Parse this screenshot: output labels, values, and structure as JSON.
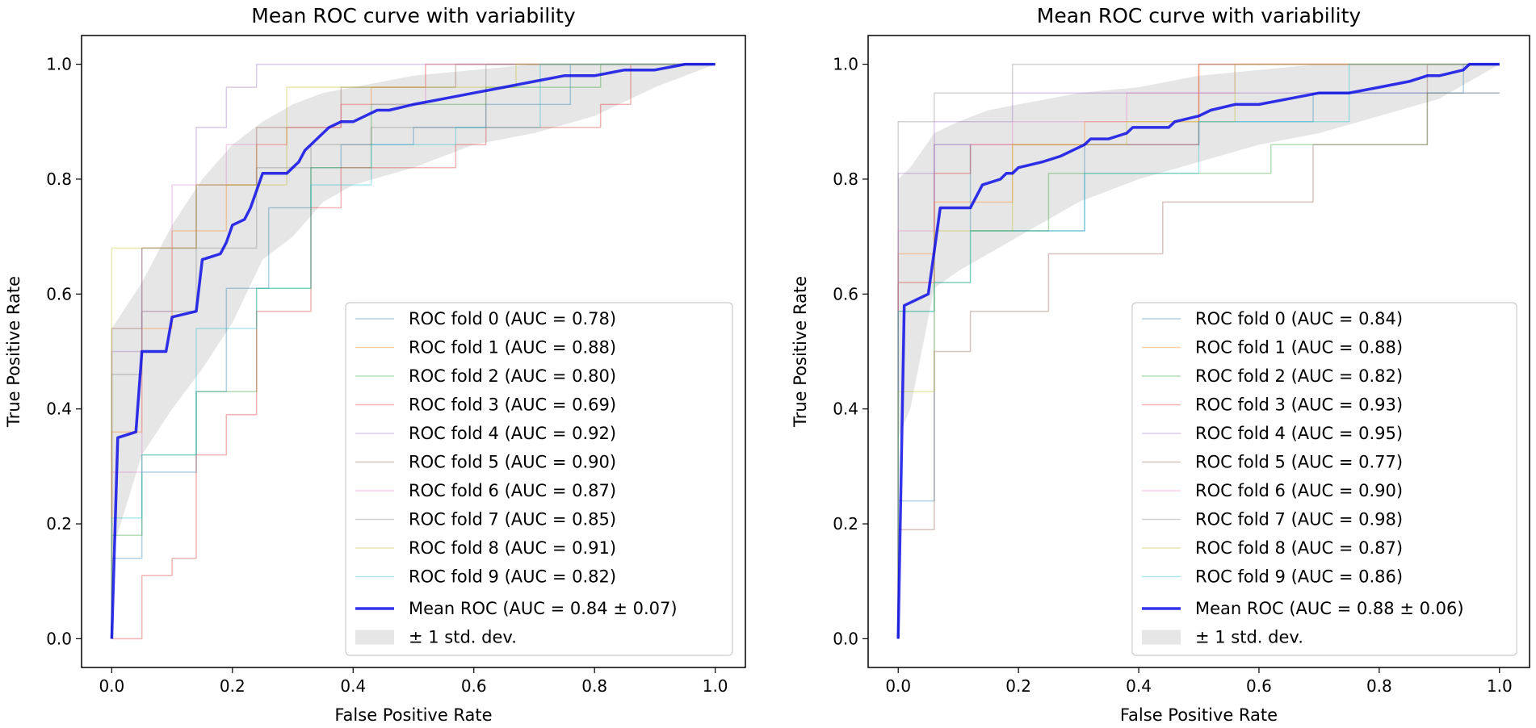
{
  "chart_data": [
    {
      "type": "line",
      "title": "Mean ROC curve with variability",
      "xlabel": "False Positive Rate",
      "ylabel": "True Positive Rate",
      "xlim": [
        -0.05,
        1.05
      ],
      "ylim": [
        -0.05,
        1.05
      ],
      "xticks": [
        "0.0",
        "0.2",
        "0.4",
        "0.6",
        "0.8",
        "1.0"
      ],
      "yticks": [
        "0.0",
        "0.2",
        "0.4",
        "0.6",
        "0.8",
        "1.0"
      ],
      "legend_position": "lower-right",
      "series": [
        {
          "name": "ROC fold 0 (AUC = 0.78)",
          "color": "#1f77b4",
          "x": [
            0,
            0,
            0.05,
            0.05,
            0.14,
            0.14,
            0.19,
            0.19,
            0.26,
            0.26,
            0.33,
            0.33,
            0.38,
            0.38,
            0.5,
            0.5,
            0.62,
            0.62,
            0.76,
            0.76,
            1
          ],
          "y": [
            0,
            0.14,
            0.14,
            0.29,
            0.29,
            0.43,
            0.43,
            0.61,
            0.61,
            0.75,
            0.75,
            0.82,
            0.82,
            0.86,
            0.86,
            0.89,
            0.89,
            0.93,
            0.93,
            1,
            1
          ]
        },
        {
          "name": "ROC fold 1 (AUC = 0.88)",
          "color": "#ff7f0e",
          "x": [
            0,
            0,
            0.05,
            0.05,
            0.1,
            0.1,
            0.19,
            0.19,
            0.24,
            0.24,
            0.29,
            0.29,
            0.38,
            0.38,
            0.43,
            0.43,
            0.52,
            0.52,
            1
          ],
          "y": [
            0,
            0.36,
            0.36,
            0.54,
            0.54,
            0.71,
            0.71,
            0.79,
            0.79,
            0.86,
            0.86,
            0.89,
            0.89,
            0.93,
            0.93,
            0.96,
            0.96,
            1,
            1
          ]
        },
        {
          "name": "ROC fold 2 (AUC = 0.80)",
          "color": "#2ca02c",
          "x": [
            0,
            0,
            0.05,
            0.05,
            0.14,
            0.14,
            0.24,
            0.24,
            0.33,
            0.33,
            0.43,
            0.43,
            0.62,
            0.62,
            0.81,
            0.81,
            1
          ],
          "y": [
            0,
            0.18,
            0.18,
            0.32,
            0.32,
            0.43,
            0.43,
            0.61,
            0.61,
            0.82,
            0.82,
            0.93,
            0.93,
            0.96,
            0.96,
            1,
            1
          ]
        },
        {
          "name": "ROC fold 3 (AUC = 0.69)",
          "color": "#d62728",
          "x": [
            0,
            0,
            0.05,
            0.05,
            0.1,
            0.1,
            0.14,
            0.14,
            0.19,
            0.19,
            0.24,
            0.24,
            0.33,
            0.33,
            0.38,
            0.38,
            0.57,
            0.57,
            0.62,
            0.62,
            0.81,
            0.81,
            0.86,
            0.86,
            1
          ],
          "y": [
            0,
            0,
            0,
            0.11,
            0.11,
            0.14,
            0.14,
            0.32,
            0.32,
            0.39,
            0.39,
            0.57,
            0.57,
            0.75,
            0.75,
            0.82,
            0.82,
            0.86,
            0.86,
            0.89,
            0.89,
            0.93,
            0.93,
            1,
            1
          ]
        },
        {
          "name": "ROC fold 4 (AUC = 0.92)",
          "color": "#9467bd",
          "x": [
            0,
            0,
            0.05,
            0.05,
            0.14,
            0.14,
            0.19,
            0.19,
            0.24,
            0.24,
            0.33,
            0.33,
            1
          ],
          "y": [
            0,
            0.5,
            0.5,
            0.68,
            0.68,
            0.89,
            0.89,
            0.96,
            0.96,
            1,
            1,
            1,
            1
          ]
        },
        {
          "name": "ROC fold 5 (AUC = 0.90)",
          "color": "#8c564b",
          "x": [
            0,
            0,
            0.05,
            0.05,
            0.14,
            0.14,
            0.24,
            0.24,
            0.38,
            0.38,
            0.57,
            0.57,
            1
          ],
          "y": [
            0,
            0.54,
            0.54,
            0.68,
            0.68,
            0.79,
            0.79,
            0.89,
            0.89,
            0.96,
            0.96,
            1,
            1
          ]
        },
        {
          "name": "ROC fold 6 (AUC = 0.87)",
          "color": "#e377c2",
          "x": [
            0,
            0,
            0.05,
            0.05,
            0.1,
            0.1,
            0.19,
            0.19,
            0.29,
            0.29,
            0.38,
            0.38,
            0.52,
            0.52,
            1
          ],
          "y": [
            0,
            0.29,
            0.29,
            0.57,
            0.57,
            0.79,
            0.79,
            0.86,
            0.86,
            0.89,
            0.89,
            0.93,
            0.93,
            1,
            1
          ]
        },
        {
          "name": "ROC fold 7 (AUC = 0.85)",
          "color": "#7f7f7f",
          "x": [
            0,
            0,
            0.05,
            0.05,
            0.14,
            0.14,
            0.24,
            0.24,
            0.33,
            0.33,
            0.43,
            0.43,
            0.62,
            0.62,
            1
          ],
          "y": [
            0,
            0.46,
            0.46,
            0.57,
            0.57,
            0.68,
            0.68,
            0.82,
            0.82,
            0.86,
            0.86,
            0.89,
            0.89,
            1,
            1
          ]
        },
        {
          "name": "ROC fold 8 (AUC = 0.91)",
          "color": "#bcbd22",
          "x": [
            0,
            0,
            0.05,
            0.05,
            0.14,
            0.14,
            0.29,
            0.29,
            0.48,
            0.48,
            0.67,
            0.67,
            1
          ],
          "y": [
            0,
            0.68,
            0.68,
            0.68,
            0.68,
            0.79,
            0.79,
            0.96,
            0.96,
            0.96,
            0.96,
            1,
            1
          ]
        },
        {
          "name": "ROC fold 9 (AUC = 0.82)",
          "color": "#17becf",
          "x": [
            0,
            0,
            0.05,
            0.05,
            0.14,
            0.14,
            0.24,
            0.24,
            0.33,
            0.33,
            0.43,
            0.43,
            0.57,
            0.57,
            0.71,
            0.71,
            1
          ],
          "y": [
            0,
            0.21,
            0.21,
            0.32,
            0.32,
            0.54,
            0.54,
            0.61,
            0.61,
            0.79,
            0.79,
            0.86,
            0.86,
            0.89,
            0.89,
            1,
            1
          ]
        },
        {
          "name": "Mean ROC (AUC = 0.84 ± 0.07)",
          "color": "#0000e6",
          "x": [
            0,
            0.01,
            0.04,
            0.05,
            0.09,
            0.1,
            0.14,
            0.15,
            0.18,
            0.19,
            0.2,
            0.22,
            0.23,
            0.25,
            0.29,
            0.3,
            0.31,
            0.32,
            0.33,
            0.35,
            0.36,
            0.38,
            0.4,
            0.42,
            0.44,
            0.46,
            0.5,
            0.55,
            0.6,
            0.65,
            0.7,
            0.75,
            0.8,
            0.85,
            0.9,
            0.95,
            1
          ],
          "y": [
            0,
            0.35,
            0.36,
            0.5,
            0.5,
            0.56,
            0.57,
            0.66,
            0.67,
            0.69,
            0.72,
            0.73,
            0.75,
            0.81,
            0.81,
            0.82,
            0.83,
            0.85,
            0.86,
            0.88,
            0.89,
            0.9,
            0.9,
            0.91,
            0.92,
            0.92,
            0.93,
            0.94,
            0.95,
            0.96,
            0.97,
            0.98,
            0.98,
            0.99,
            0.99,
            1,
            1
          ]
        },
        {
          "name": "± 1 std. dev.",
          "color": "#808080",
          "x": [
            0,
            0.05,
            0.1,
            0.15,
            0.2,
            0.25,
            0.3,
            0.35,
            0.4,
            0.5,
            0.6,
            0.7,
            0.8,
            0.9,
            1
          ],
          "y_upper": [
            0.54,
            0.62,
            0.72,
            0.8,
            0.86,
            0.9,
            0.93,
            0.95,
            0.96,
            0.98,
            0.99,
            1,
            1,
            1,
            1
          ],
          "y_lower": [
            0.15,
            0.32,
            0.4,
            0.47,
            0.55,
            0.66,
            0.7,
            0.76,
            0.79,
            0.82,
            0.86,
            0.88,
            0.91,
            0.96,
            1
          ]
        }
      ]
    },
    {
      "type": "line",
      "title": "Mean ROC curve with variability",
      "xlabel": "False Positive Rate",
      "ylabel": "True Positive Rate",
      "xlim": [
        -0.05,
        1.05
      ],
      "ylim": [
        -0.05,
        1.05
      ],
      "xticks": [
        "0.0",
        "0.2",
        "0.4",
        "0.6",
        "0.8",
        "1.0"
      ],
      "yticks": [
        "0.0",
        "0.2",
        "0.4",
        "0.6",
        "0.8",
        "1.0"
      ],
      "legend_position": "lower-right",
      "series": [
        {
          "name": "ROC fold 0 (AUC = 0.84)",
          "color": "#1f77b4",
          "x": [
            0,
            0,
            0.06,
            0.06,
            0.12,
            0.12,
            0.31,
            0.31,
            0.5,
            0.5,
            0.69,
            0.69,
            0.94,
            0.94,
            1
          ],
          "y": [
            0,
            0.24,
            0.24,
            0.86,
            0.86,
            0.71,
            0.71,
            0.86,
            0.86,
            0.9,
            0.9,
            0.95,
            0.95,
            1,
            1
          ]
        },
        {
          "name": "ROC fold 1 (AUC = 0.88)",
          "color": "#ff7f0e",
          "x": [
            0,
            0,
            0.06,
            0.06,
            0.19,
            0.19,
            0.31,
            0.31,
            0.5,
            0.5,
            1
          ],
          "y": [
            0,
            0.67,
            0.67,
            0.76,
            0.76,
            0.86,
            0.86,
            0.9,
            0.9,
            1,
            1
          ]
        },
        {
          "name": "ROC fold 2 (AUC = 0.82)",
          "color": "#2ca02c",
          "x": [
            0,
            0,
            0.06,
            0.06,
            0.12,
            0.12,
            0.25,
            0.25,
            0.62,
            0.62,
            0.88,
            0.88,
            1
          ],
          "y": [
            0,
            0.57,
            0.57,
            0.62,
            0.62,
            0.71,
            0.71,
            0.81,
            0.81,
            0.86,
            0.86,
            0.95,
            0.95
          ]
        },
        {
          "name": "ROC fold 3 (AUC = 0.93)",
          "color": "#d62728",
          "x": [
            0,
            0,
            0.06,
            0.06,
            0.12,
            0.12,
            0.5,
            0.5,
            1
          ],
          "y": [
            0,
            0.62,
            0.62,
            0.81,
            0.81,
            0.86,
            0.86,
            1,
            1
          ]
        },
        {
          "name": "ROC fold 4 (AUC = 0.95)",
          "color": "#9467bd",
          "x": [
            0,
            0,
            0.06,
            0.06,
            0.19,
            0.19,
            1
          ],
          "y": [
            0,
            0.81,
            0.81,
            0.9,
            0.9,
            0.95,
            0.95
          ]
        },
        {
          "name": "ROC fold 5 (AUC = 0.77)",
          "color": "#8c564b",
          "x": [
            0,
            0,
            0.06,
            0.06,
            0.12,
            0.12,
            0.25,
            0.25,
            0.44,
            0.44,
            0.69,
            0.69,
            0.88,
            0.88,
            1
          ],
          "y": [
            0,
            0.19,
            0.19,
            0.5,
            0.5,
            0.57,
            0.57,
            0.67,
            0.67,
            0.76,
            0.76,
            0.86,
            0.86,
            1,
            1
          ]
        },
        {
          "name": "ROC fold 6 (AUC = 0.90)",
          "color": "#e377c2",
          "x": [
            0,
            0,
            0.06,
            0.06,
            0.19,
            0.19,
            0.38,
            0.38,
            0.56,
            0.56,
            1
          ],
          "y": [
            0,
            0.71,
            0.71,
            0.86,
            0.86,
            0.9,
            0.9,
            0.95,
            0.95,
            1,
            1
          ]
        },
        {
          "name": "ROC fold 7 (AUC = 0.98)",
          "color": "#7f7f7f",
          "x": [
            0,
            0,
            0.06,
            0.06,
            0.19,
            0.19,
            1
          ],
          "y": [
            0,
            0.9,
            0.9,
            0.95,
            0.95,
            1,
            1
          ]
        },
        {
          "name": "ROC fold 8 (AUC = 0.87)",
          "color": "#bcbd22",
          "x": [
            0,
            0,
            0.06,
            0.06,
            0.19,
            0.19,
            0.38,
            0.38,
            0.56,
            0.56,
            1
          ],
          "y": [
            0,
            0.43,
            0.43,
            0.71,
            0.71,
            0.86,
            0.86,
            0.9,
            0.9,
            1,
            1
          ]
        },
        {
          "name": "ROC fold 9 (AUC = 0.86)",
          "color": "#17becf",
          "x": [
            0,
            0,
            0.06,
            0.06,
            0.12,
            0.12,
            0.31,
            0.31,
            0.5,
            0.5,
            0.75,
            0.75,
            1
          ],
          "y": [
            0,
            0.57,
            0.57,
            0.62,
            0.62,
            0.71,
            0.71,
            0.81,
            0.81,
            0.9,
            0.9,
            1,
            1
          ]
        },
        {
          "name": "Mean ROC (AUC = 0.88 ± 0.06)",
          "color": "#0000e6",
          "x": [
            0,
            0.01,
            0.05,
            0.07,
            0.12,
            0.14,
            0.17,
            0.18,
            0.19,
            0.2,
            0.24,
            0.27,
            0.31,
            0.32,
            0.35,
            0.38,
            0.39,
            0.42,
            0.45,
            0.46,
            0.5,
            0.52,
            0.56,
            0.6,
            0.65,
            0.7,
            0.75,
            0.8,
            0.85,
            0.88,
            0.9,
            0.94,
            0.95,
            1
          ],
          "y": [
            0,
            0.58,
            0.6,
            0.75,
            0.75,
            0.79,
            0.8,
            0.81,
            0.81,
            0.82,
            0.83,
            0.84,
            0.86,
            0.87,
            0.87,
            0.88,
            0.89,
            0.89,
            0.89,
            0.9,
            0.91,
            0.92,
            0.93,
            0.93,
            0.94,
            0.95,
            0.95,
            0.96,
            0.97,
            0.98,
            0.98,
            0.99,
            1,
            1
          ]
        },
        {
          "name": "± 1 std. dev.",
          "color": "#808080",
          "x": [
            0,
            0.02,
            0.06,
            0.1,
            0.15,
            0.2,
            0.3,
            0.4,
            0.5,
            0.6,
            0.7,
            0.8,
            0.9,
            1
          ],
          "y_upper": [
            0.8,
            0.82,
            0.88,
            0.9,
            0.92,
            0.93,
            0.95,
            0.96,
            0.98,
            0.99,
            1,
            1,
            1,
            1
          ],
          "y_lower": [
            0.35,
            0.4,
            0.61,
            0.64,
            0.67,
            0.7,
            0.76,
            0.8,
            0.83,
            0.86,
            0.88,
            0.91,
            0.94,
            1
          ]
        }
      ]
    }
  ]
}
